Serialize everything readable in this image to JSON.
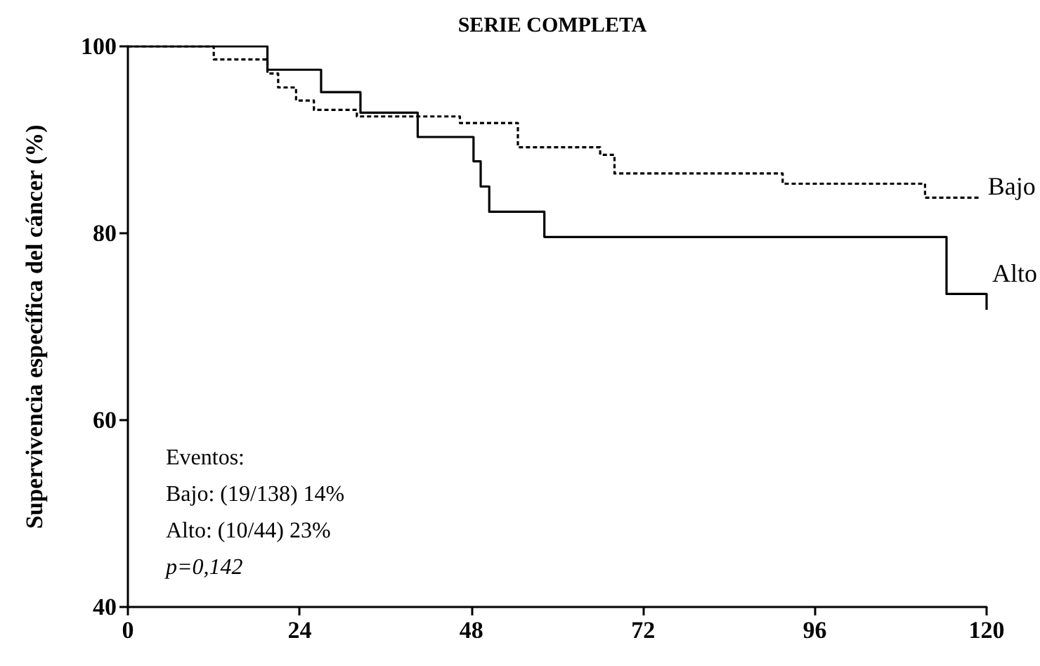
{
  "chart_data": {
    "type": "step",
    "title": "SERIE COMPLETA",
    "ylabel": "Supervivencia específica del cáncer (%)",
    "xlim": [
      0,
      120
    ],
    "xticks": [
      0,
      24,
      48,
      72,
      96,
      120
    ],
    "ylim": [
      40,
      100
    ],
    "yticks": [
      40,
      60,
      80,
      100
    ],
    "grid": false,
    "legend": false,
    "marker": "none",
    "series": [
      {
        "name": "Bajo",
        "color": "#000000",
        "line_style": "dashed",
        "x": [
          0,
          12,
          19.5,
          21,
          23.5,
          26,
          32,
          46.4,
          54.5,
          66,
          68,
          91.5,
          111.4,
          119
        ],
        "values": [
          100,
          98.6,
          97.1,
          95.6,
          94.2,
          93.2,
          92.5,
          91.8,
          89.2,
          88.4,
          86.4,
          85.3,
          83.8,
          83.8
        ]
      },
      {
        "name": "Alto",
        "color": "#000000",
        "line_style": "solid",
        "x": [
          0,
          19.5,
          27,
          32.5,
          40.5,
          48.3,
          49.3,
          50.5,
          58.2,
          114.4,
          120
        ],
        "values": [
          100,
          97.5,
          95.1,
          92.9,
          90.3,
          87.7,
          85.0,
          82.3,
          79.6,
          73.5,
          71.8
        ]
      }
    ],
    "annotations": [
      "Eventos:",
      "Bajo: (19/138) 14%",
      "Alto: (10/44) 23%",
      "p=0,142"
    ]
  }
}
